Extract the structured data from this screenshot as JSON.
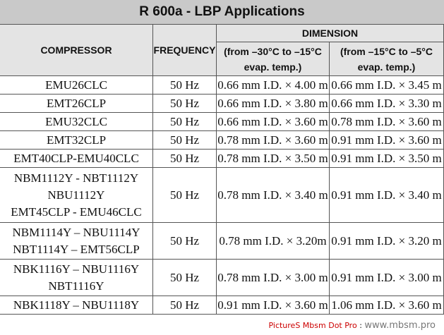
{
  "header": {
    "title": "R 600a - LBP Applications",
    "compressor": "COMPRESSOR",
    "frequency": "FREQUENCY",
    "dimension": "DIMENSION",
    "col1": [
      "(from –30°C to –15°C",
      "evap. temp.)"
    ],
    "col2": [
      "(from –15°C to –5°C",
      "evap. temp.)"
    ]
  },
  "table": {
    "rows": [
      [
        [
          "EMU26CLC"
        ],
        "50 Hz",
        "0.66 mm I.D. × 4.00 m",
        "0.66 mm I.D. × 3.45 m"
      ],
      [
        [
          "EMT26CLP"
        ],
        "50 Hz",
        "0.66 mm I.D. × 3.80 m",
        "0.66 mm I.D. × 3.30 m"
      ],
      [
        [
          "EMU32CLC"
        ],
        "50 Hz",
        "0.66 mm I.D. × 3.60 m",
        "0.78 mm I.D. × 3.60 m"
      ],
      [
        [
          "EMT32CLP"
        ],
        "50 Hz",
        "0.78 mm I.D. × 3.60 m",
        "0.91 mm I.D. × 3.60 m"
      ],
      [
        [
          "EMT40CLP-EMU40CLC"
        ],
        "50 Hz",
        "0.78 mm I.D. × 3.50 m",
        "0.91 mm I.D. × 3.50 m"
      ],
      [
        [
          "NBM1112Y - NBT1112Y",
          "NBU1112Y",
          "EMT45CLP - EMU46CLC"
        ],
        "50 Hz",
        "0.78 mm I.D. × 3.40 m",
        "0.91 mm I.D. × 3.40 m"
      ],
      [
        [
          "NBM1114Y – NBU1114Y",
          "NBT1114Y – EMT56CLP"
        ],
        "50 Hz",
        "0.78 mm I.D. × 3.20m",
        "0.91 mm I.D. × 3.20 m"
      ],
      [
        [
          "NBK1116Y – NBU1116Y",
          "NBT1116Y"
        ],
        "50 Hz",
        "0.78 mm I.D. × 3.00 m",
        "0.91 mm I.D. × 3.00 m"
      ],
      [
        [
          "NBK1118Y – NBU1118Y"
        ],
        "50 Hz",
        "0.91 mm I.D. × 3.60 m",
        "1.06 mm I.D. × 3.60 m"
      ]
    ]
  },
  "watermark": {
    "site": "PictureS Mbsm Dot Pro",
    "sep": ":",
    "url": "www.mbsm.pro"
  }
}
